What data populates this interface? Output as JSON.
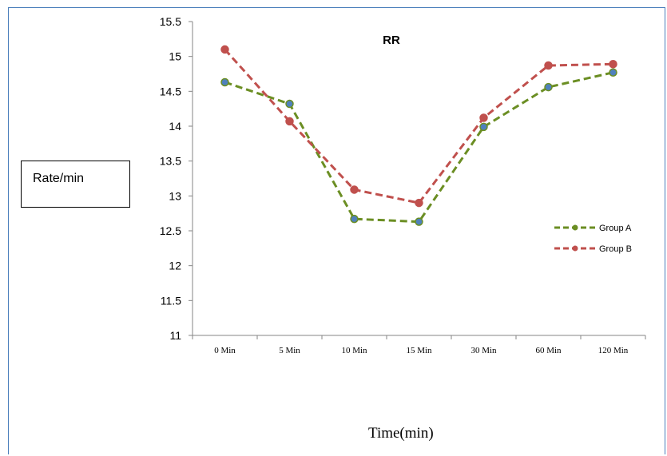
{
  "chart_data": {
    "type": "line",
    "title": "RR",
    "ylabel": "Rate/min",
    "xlabel": "Time(min)",
    "categories": [
      "0 Min",
      "5 Min",
      "10 Min",
      "15 Min",
      "30 Min",
      "60 Min",
      "120 Min"
    ],
    "ylim": [
      11,
      15.5
    ],
    "yticks": [
      "11",
      "11.5",
      "12",
      "12.5",
      "13",
      "13.5",
      "14",
      "14.5",
      "15",
      "15.5"
    ],
    "ytick_values": [
      11,
      11.5,
      12,
      12.5,
      13,
      13.5,
      14,
      14.5,
      15,
      15.5
    ],
    "grid": false,
    "legend_position": "right",
    "series": [
      {
        "name": "Group A",
        "color": "#6b8e23",
        "marker_color": "#4f81bd",
        "line_style": "dashed",
        "values": [
          14.63,
          14.32,
          12.67,
          12.63,
          13.99,
          14.56,
          14.77
        ]
      },
      {
        "name": "Group B",
        "color": "#c0504d",
        "marker_color": "#c0504d",
        "line_style": "dashed",
        "values": [
          15.1,
          14.07,
          13.09,
          12.9,
          14.12,
          14.87,
          14.89
        ]
      }
    ]
  }
}
